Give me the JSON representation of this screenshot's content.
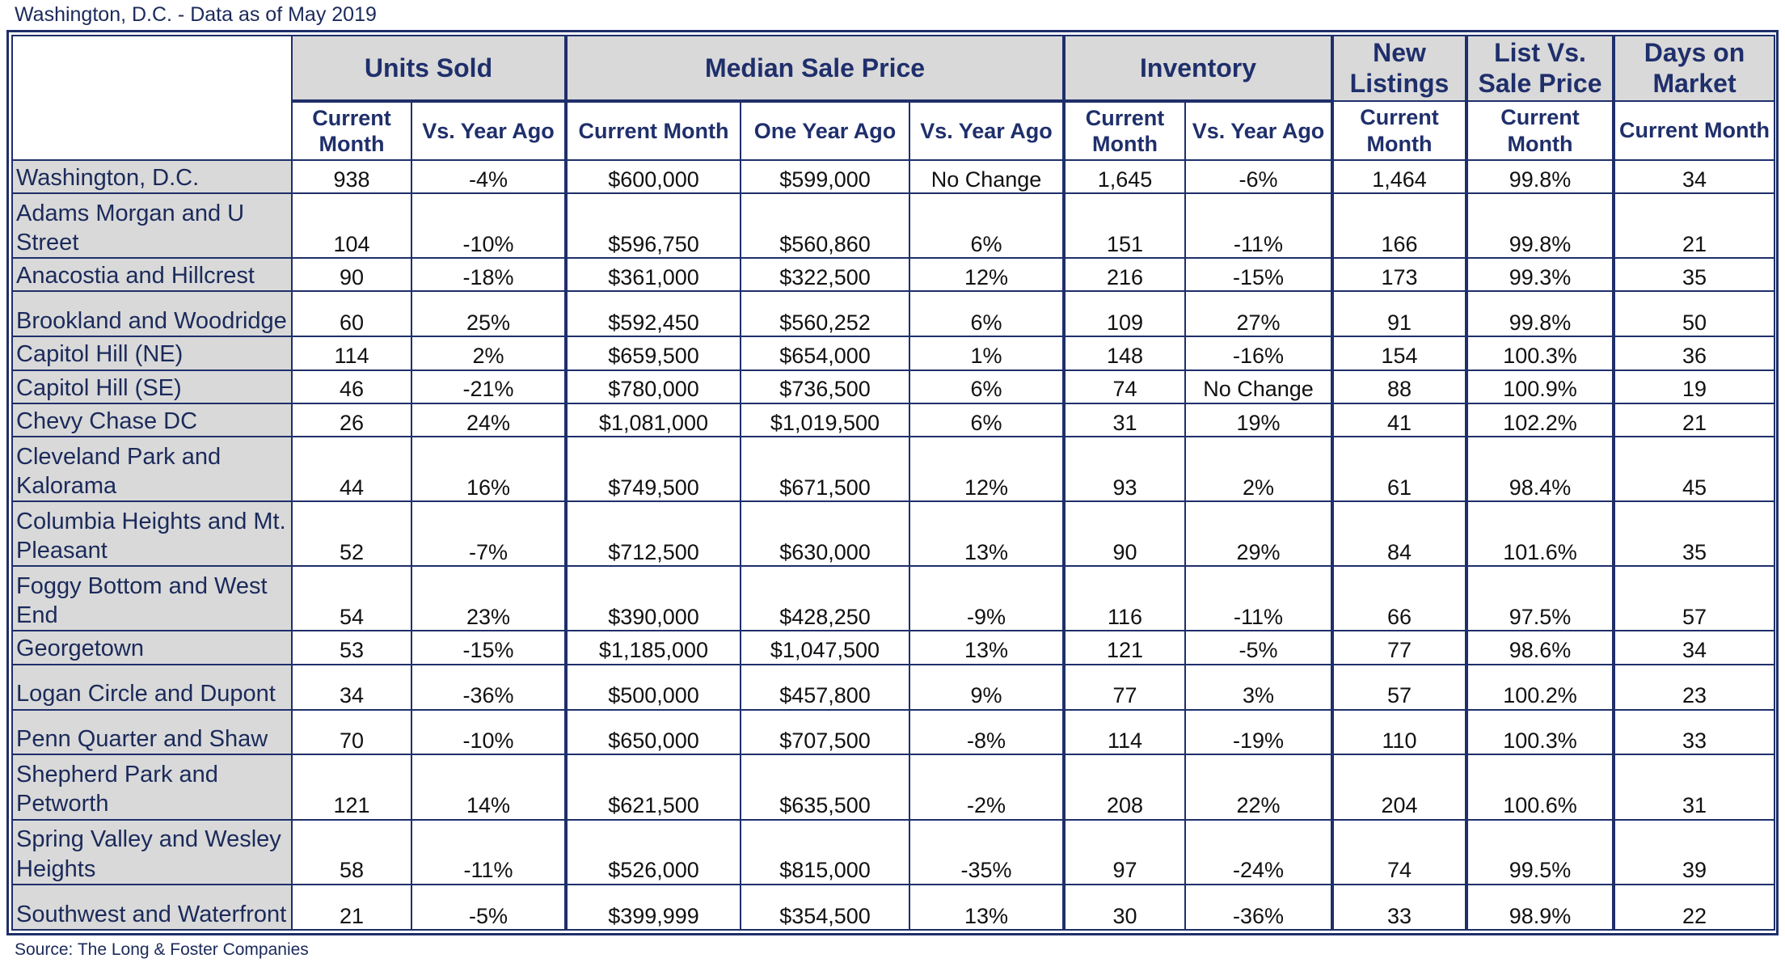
{
  "title": "Washington, D.C. - Data as of May 2019",
  "source": "Source: The Long & Foster Companies",
  "chart_data": {
    "type": "table",
    "group_headers": {
      "units_sold": "Units Sold",
      "median_sale_price": "Median Sale Price",
      "inventory": "Inventory",
      "new_listings": "New Listings",
      "list_vs_sale": "List Vs. Sale Price",
      "days_on_market": "Days on Market"
    },
    "columns": [
      "Current Month",
      "Vs. Year Ago",
      "Current Month",
      "One Year Ago",
      "Vs. Year Ago",
      "Current Month",
      "Vs. Year Ago",
      "Current Month",
      "Current Month",
      "Current Month"
    ],
    "rows": [
      {
        "name": "Washington, D.C.",
        "values": [
          "938",
          "-4%",
          "$600,000",
          "$599,000",
          "No Change",
          "1,645",
          "-6%",
          "1,464",
          "99.8%",
          "34"
        ]
      },
      {
        "name": "Adams Morgan and U Street",
        "values": [
          "104",
          "-10%",
          "$596,750",
          "$560,860",
          "6%",
          "151",
          "-11%",
          "166",
          "99.8%",
          "21"
        ]
      },
      {
        "name": "Anacostia and Hillcrest",
        "values": [
          "90",
          "-18%",
          "$361,000",
          "$322,500",
          "12%",
          "216",
          "-15%",
          "173",
          "99.3%",
          "35"
        ]
      },
      {
        "name": "Brookland and Woodridge",
        "values": [
          "60",
          "25%",
          "$592,450",
          "$560,252",
          "6%",
          "109",
          "27%",
          "91",
          "99.8%",
          "50"
        ]
      },
      {
        "name": "Capitol Hill (NE)",
        "values": [
          "114",
          "2%",
          "$659,500",
          "$654,000",
          "1%",
          "148",
          "-16%",
          "154",
          "100.3%",
          "36"
        ]
      },
      {
        "name": "Capitol Hill (SE)",
        "values": [
          "46",
          "-21%",
          "$780,000",
          "$736,500",
          "6%",
          "74",
          "No Change",
          "88",
          "100.9%",
          "19"
        ]
      },
      {
        "name": "Chevy Chase DC",
        "values": [
          "26",
          "24%",
          "$1,081,000",
          "$1,019,500",
          "6%",
          "31",
          "19%",
          "41",
          "102.2%",
          "21"
        ]
      },
      {
        "name": "Cleveland Park and Kalorama",
        "values": [
          "44",
          "16%",
          "$749,500",
          "$671,500",
          "12%",
          "93",
          "2%",
          "61",
          "98.4%",
          "45"
        ]
      },
      {
        "name": "Columbia Heights and Mt. Pleasant",
        "values": [
          "52",
          "-7%",
          "$712,500",
          "$630,000",
          "13%",
          "90",
          "29%",
          "84",
          "101.6%",
          "35"
        ]
      },
      {
        "name": "Foggy Bottom and West End",
        "values": [
          "54",
          "23%",
          "$390,000",
          "$428,250",
          "-9%",
          "116",
          "-11%",
          "66",
          "97.5%",
          "57"
        ]
      },
      {
        "name": "Georgetown",
        "values": [
          "53",
          "-15%",
          "$1,185,000",
          "$1,047,500",
          "13%",
          "121",
          "-5%",
          "77",
          "98.6%",
          "34"
        ]
      },
      {
        "name": "Logan Circle and Dupont",
        "values": [
          "34",
          "-36%",
          "$500,000",
          "$457,800",
          "9%",
          "77",
          "3%",
          "57",
          "100.2%",
          "23"
        ]
      },
      {
        "name": "Penn Quarter and Shaw",
        "values": [
          "70",
          "-10%",
          "$650,000",
          "$707,500",
          "-8%",
          "114",
          "-19%",
          "110",
          "100.3%",
          "33"
        ]
      },
      {
        "name": "Shepherd Park and Petworth",
        "values": [
          "121",
          "14%",
          "$621,500",
          "$635,500",
          "-2%",
          "208",
          "22%",
          "204",
          "100.6%",
          "31"
        ]
      },
      {
        "name": "Spring Valley and Wesley Heights",
        "values": [
          "58",
          "-11%",
          "$526,000",
          "$815,000",
          "-35%",
          "97",
          "-24%",
          "74",
          "99.5%",
          "39"
        ]
      },
      {
        "name": "Southwest and Waterfront",
        "values": [
          "21",
          "-5%",
          "$399,999",
          "$354,500",
          "13%",
          "30",
          "-36%",
          "33",
          "98.9%",
          "22"
        ]
      }
    ]
  }
}
